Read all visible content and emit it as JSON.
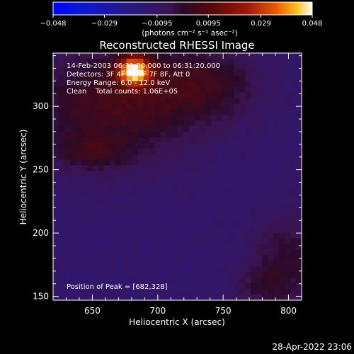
{
  "figure": {
    "title": "Reconstructed RHESSI Image",
    "colorbar": {
      "ticks": [
        "-0.048",
        "-0.029",
        "-0.0095",
        "0.0095",
        "0.029",
        "0.048"
      ],
      "unit_label": "(photons cm⁻² s⁻¹ asec⁻²)",
      "colormap": "hot-with-blue-negative",
      "range": [
        -0.048,
        0.048
      ]
    },
    "annotations": {
      "time_range": "14-Feb-2003 06:31:20.000 to 06:31:20.000",
      "detectors": "Detectors: 3F 4F 5F 6F 7F 8F, Att 0",
      "energy_range": "Energy Range: 6.0 - 12.0 keV",
      "clean_line": "Clean    Total counts: 1.06E+05",
      "peak_position": "Position of Peak = [682,328]"
    },
    "footer_timestamp": "28-Apr-2022 23:06"
  },
  "chart_data": {
    "type": "heatmap",
    "title": "Reconstructed RHESSI Image",
    "xlabel": "Heliocentric X (arcsec)",
    "ylabel": "Heliocentric Y (arcsec)",
    "xlim": [
      620,
      810
    ],
    "ylim": [
      147,
      342
    ],
    "xticks": [
      650,
      700,
      750,
      800
    ],
    "yticks": [
      150,
      200,
      250,
      300
    ],
    "xtick_labels": [
      "650",
      "700",
      "750",
      "800"
    ],
    "ytick_labels": [
      "150",
      "200",
      "250",
      "300"
    ],
    "value_unit": "photons cm^-2 s^-1 asec^-2",
    "vmin": -0.048,
    "vmax": 0.048,
    "peak": {
      "x": 682,
      "y": 328
    },
    "sources": [
      {
        "x": 682,
        "y": 328,
        "sx": 9,
        "sy": 8,
        "amp": 0.052
      },
      {
        "x": 664,
        "y": 300,
        "sx": 45,
        "sy": 32,
        "amp": 0.018
      },
      {
        "x": 735,
        "y": 318,
        "sx": 30,
        "sy": 20,
        "amp": 0.014
      },
      {
        "x": 650,
        "y": 263,
        "sx": 18,
        "sy": 8,
        "amp": 0.01
      },
      {
        "x": 800,
        "y": 180,
        "sx": 20,
        "sy": 25,
        "amp": 0.012
      },
      {
        "x": 778,
        "y": 158,
        "sx": 15,
        "sy": 12,
        "amp": 0.008
      }
    ],
    "background": -0.012,
    "grid": false
  }
}
